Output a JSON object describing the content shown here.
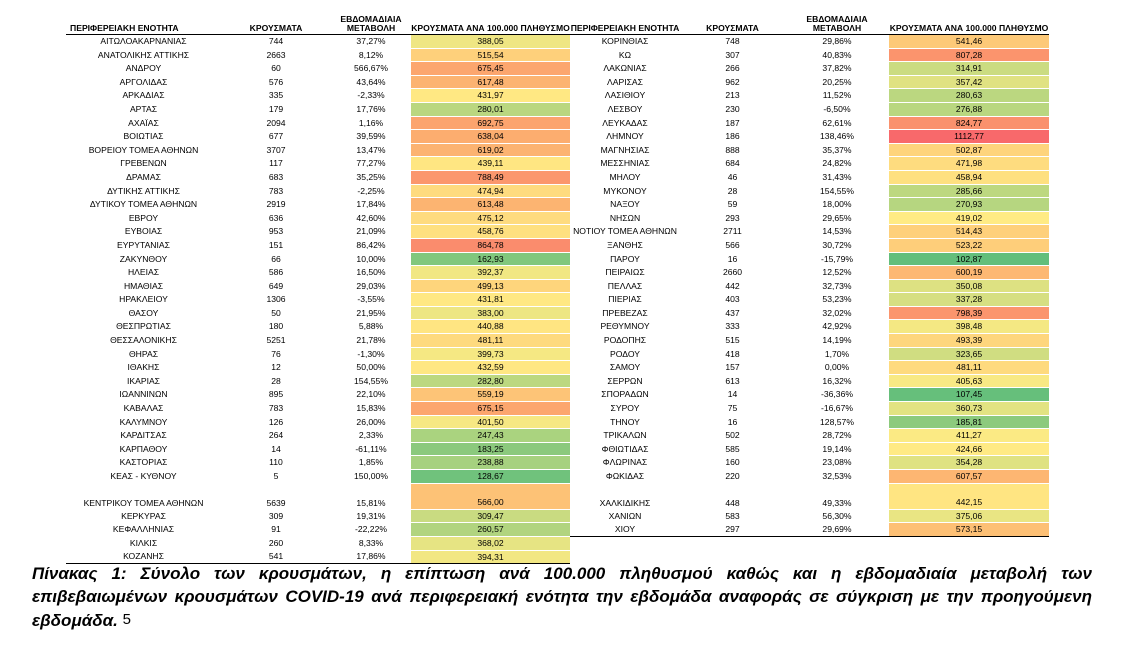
{
  "table": {
    "headers": [
      "ΠΕΡΙΦΕΡΕΙΑΚΗ ΕΝΟΤΗΤΑ",
      "ΚΡΟΥΣΜΑΤΑ",
      "ΕΒΔΟΜΑΔΙΑΙΑ ΜΕΤΑΒΟΛΗ",
      "ΚΡΟΥΣΜΑΤΑ ΑΝΑ 100.000 ΠΛΗΘΥΣΜΟ"
    ],
    "headers_right": [
      "ΠΕΡΙΦΕΡΕΙΑΚΗ ΕΝΟΤΗΤΑ",
      "ΚΡΟΥΣΜΑΤΑ",
      "ΕΒΔΟΜΑΔΙΑΙΑ ΜΕΤΑΒΟΛΗ",
      "ΚΡΟΥΣΜΑΤΑ ΑΝΑ 100.000 ΠΛΗΘΥΣΜΟ"
    ],
    "left": [
      [
        "ΑΙΤΩΛΟΑΚΑΡΝΑΝΙΑΣ",
        "744",
        "37,27%",
        "388,05"
      ],
      [
        "ΑΝΑΤΟΛΙΚΗΣ ΑΤΤΙΚΗΣ",
        "2663",
        "8,12%",
        "515,54"
      ],
      [
        "ΑΝΔΡΟΥ",
        "60",
        "566,67%",
        "675,45"
      ],
      [
        "ΑΡΓΟΛΙΔΑΣ",
        "576",
        "43,64%",
        "617,48"
      ],
      [
        "ΑΡΚΑΔΙΑΣ",
        "335",
        "-2,33%",
        "431,97"
      ],
      [
        "ΑΡΤΑΣ",
        "179",
        "17,76%",
        "280,01"
      ],
      [
        "ΑΧΑΪΑΣ",
        "2094",
        "1,16%",
        "692,75"
      ],
      [
        "ΒΟΙΩΤΙΑΣ",
        "677",
        "39,59%",
        "638,04"
      ],
      [
        "ΒΟΡΕΙΟΥ ΤΟΜΕΑ ΑΘΗΝΩΝ",
        "3707",
        "13,47%",
        "619,02"
      ],
      [
        "ΓΡΕΒΕΝΩΝ",
        "117",
        "77,27%",
        "439,11"
      ],
      [
        "ΔΡΑΜΑΣ",
        "683",
        "35,25%",
        "788,49"
      ],
      [
        "ΔΥΤΙΚΗΣ ΑΤΤΙΚΗΣ",
        "783",
        "-2,25%",
        "474,94"
      ],
      [
        "ΔΥΤΙΚΟΥ ΤΟΜΕΑ ΑΘΗΝΩΝ",
        "2919",
        "17,84%",
        "613,48"
      ],
      [
        "ΕΒΡΟΥ",
        "636",
        "42,60%",
        "475,12"
      ],
      [
        "ΕΥΒΟΙΑΣ",
        "953",
        "21,09%",
        "458,76"
      ],
      [
        "ΕΥΡΥΤΑΝΙΑΣ",
        "151",
        "86,42%",
        "864,78"
      ],
      [
        "ΖΑΚΥΝΘΟΥ",
        "66",
        "10,00%",
        "162,93"
      ],
      [
        "ΗΛΕΙΑΣ",
        "586",
        "16,50%",
        "392,37"
      ],
      [
        "ΗΜΑΘΙΑΣ",
        "649",
        "29,03%",
        "499,13"
      ],
      [
        "ΗΡΑΚΛΕΙΟΥ",
        "1306",
        "-3,55%",
        "431,81"
      ],
      [
        "ΘΑΣΟΥ",
        "50",
        "21,95%",
        "383,00"
      ],
      [
        "ΘΕΣΠΡΩΤΙΑΣ",
        "180",
        "5,88%",
        "440,88"
      ],
      [
        "ΘΕΣΣΑΛΟΝΙΚΗΣ",
        "5251",
        "21,78%",
        "481,11"
      ],
      [
        "ΘΗΡΑΣ",
        "76",
        "-1,30%",
        "399,73"
      ],
      [
        "ΙΘΑΚΗΣ",
        "12",
        "50,00%",
        "432,59"
      ],
      [
        "ΙΚΑΡΙΑΣ",
        "28",
        "154,55%",
        "282,80"
      ],
      [
        "ΙΩΑΝΝΙΝΩΝ",
        "895",
        "22,10%",
        "559,19"
      ],
      [
        "ΚΑΒΑΛΑΣ",
        "783",
        "15,83%",
        "675,15"
      ],
      [
        "ΚΑΛΥΜΝΟΥ",
        "126",
        "26,00%",
        "401,50"
      ],
      [
        "ΚΑΡΔΙΤΣΑΣ",
        "264",
        "2,33%",
        "247,43"
      ],
      [
        "ΚΑΡΠΑΘΟΥ",
        "14",
        "-61,11%",
        "183,25"
      ],
      [
        "ΚΑΣΤΟΡΙΑΣ",
        "110",
        "1,85%",
        "238,88"
      ],
      [
        "ΚΕΑΣ - ΚΥΘΝΟΥ",
        "5",
        "150,00%",
        "128,67"
      ],
      [
        "ΚΕΝΤΡΙΚΟΥ ΤΟΜΕΑ ΑΘΗΝΩΝ",
        "5639",
        "15,81%",
        "566,00"
      ],
      [
        "ΚΕΡΚΥΡΑΣ",
        "309",
        "19,31%",
        "309,47"
      ],
      [
        "ΚΕΦΑΛΛΗΝΙΑΣ",
        "91",
        "-22,22%",
        "260,57"
      ],
      [
        "ΚΙΛΚΙΣ",
        "260",
        "8,33%",
        "368,02"
      ],
      [
        "ΚΟΖΑΝΗΣ",
        "541",
        "17,86%",
        "394,31"
      ]
    ],
    "right": [
      [
        "ΚΟΡΙΝΘΙΑΣ",
        "748",
        "29,86%",
        "541,46"
      ],
      [
        "ΚΩ",
        "307",
        "40,83%",
        "807,28"
      ],
      [
        "ΛΑΚΩΝΙΑΣ",
        "266",
        "37,82%",
        "314,91"
      ],
      [
        "ΛΑΡΙΣΑΣ",
        "962",
        "20,25%",
        "357,42"
      ],
      [
        "ΛΑΣΙΘΙΟΥ",
        "213",
        "11,52%",
        "280,63"
      ],
      [
        "ΛΕΣΒΟΥ",
        "230",
        "-6,50%",
        "276,88"
      ],
      [
        "ΛΕΥΚΑΔΑΣ",
        "187",
        "62,61%",
        "824,77"
      ],
      [
        "ΛΗΜΝΟΥ",
        "186",
        "138,46%",
        "1112,77"
      ],
      [
        "ΜΑΓΝΗΣΙΑΣ",
        "888",
        "35,37%",
        "502,87"
      ],
      [
        "ΜΕΣΣΗΝΙΑΣ",
        "684",
        "24,82%",
        "471,98"
      ],
      [
        "ΜΗΛΟΥ",
        "46",
        "31,43%",
        "458,94"
      ],
      [
        "ΜΥΚΟΝΟΥ",
        "28",
        "154,55%",
        "285,66"
      ],
      [
        "ΝΑΞΟΥ",
        "59",
        "18,00%",
        "270,93"
      ],
      [
        "ΝΗΣΩΝ",
        "293",
        "29,65%",
        "419,02"
      ],
      [
        "ΝΟΤΙΟΥ ΤΟΜΕΑ ΑΘΗΝΩΝ",
        "2711",
        "14,53%",
        "514,43"
      ],
      [
        "ΞΑΝΘΗΣ",
        "566",
        "30,72%",
        "523,22"
      ],
      [
        "ΠΑΡΟΥ",
        "16",
        "-15,79%",
        "102,87"
      ],
      [
        "ΠΕΙΡΑΙΩΣ",
        "2660",
        "12,52%",
        "600,19"
      ],
      [
        "ΠΕΛΛΑΣ",
        "442",
        "32,73%",
        "350,08"
      ],
      [
        "ΠΙΕΡΙΑΣ",
        "403",
        "53,23%",
        "337,28"
      ],
      [
        "ΠΡΕΒΕΖΑΣ",
        "437",
        "32,02%",
        "798,39"
      ],
      [
        "ΡΕΘΥΜΝΟΥ",
        "333",
        "42,92%",
        "398,48"
      ],
      [
        "ΡΟΔΟΠΗΣ",
        "515",
        "14,19%",
        "493,39"
      ],
      [
        "ΡΟΔΟΥ",
        "418",
        "1,70%",
        "323,65"
      ],
      [
        "ΣΑΜΟΥ",
        "157",
        "0,00%",
        "481,11"
      ],
      [
        "ΣΕΡΡΩΝ",
        "613",
        "16,32%",
        "405,63"
      ],
      [
        "ΣΠΟΡΑΔΩΝ",
        "14",
        "-36,36%",
        "107,45"
      ],
      [
        "ΣΥΡΟΥ",
        "75",
        "-16,67%",
        "360,73"
      ],
      [
        "ΤΗΝΟΥ",
        "16",
        "128,57%",
        "185,81"
      ],
      [
        "ΤΡΙΚΑΛΩΝ",
        "502",
        "28,72%",
        "411,27"
      ],
      [
        "ΦΘΙΩΤΙΔΑΣ",
        "585",
        "19,14%",
        "424,66"
      ],
      [
        "ΦΛΩΡΙΝΑΣ",
        "160",
        "23,08%",
        "354,28"
      ],
      [
        "ΦΩΚΙΔΑΣ",
        "220",
        "32,53%",
        "607,57"
      ],
      [
        "ΧΑΛΚΙΔΙΚΗΣ",
        "448",
        "49,33%",
        "442,15"
      ],
      [
        "ΧΑΝΙΩΝ",
        "583",
        "56,30%",
        "375,06"
      ],
      [
        "ΧΙΟΥ",
        "297",
        "29,69%",
        "573,15"
      ]
    ]
  },
  "caption": {
    "text": "Πίνακας 1: Σύνολο των κρουσμάτων, η επίπτωση ανά 100.000 πληθυσμού καθώς και η εβδομαδιαία μεταβολή των επιβεβαιωμένων κρουσμάτων COVID-19 ανά περιφερειακή ενότητα την εβδομάδα αναφοράς σε σύγκριση με την προηγούμενη εβδομάδα.",
    "footnote": "5"
  }
}
